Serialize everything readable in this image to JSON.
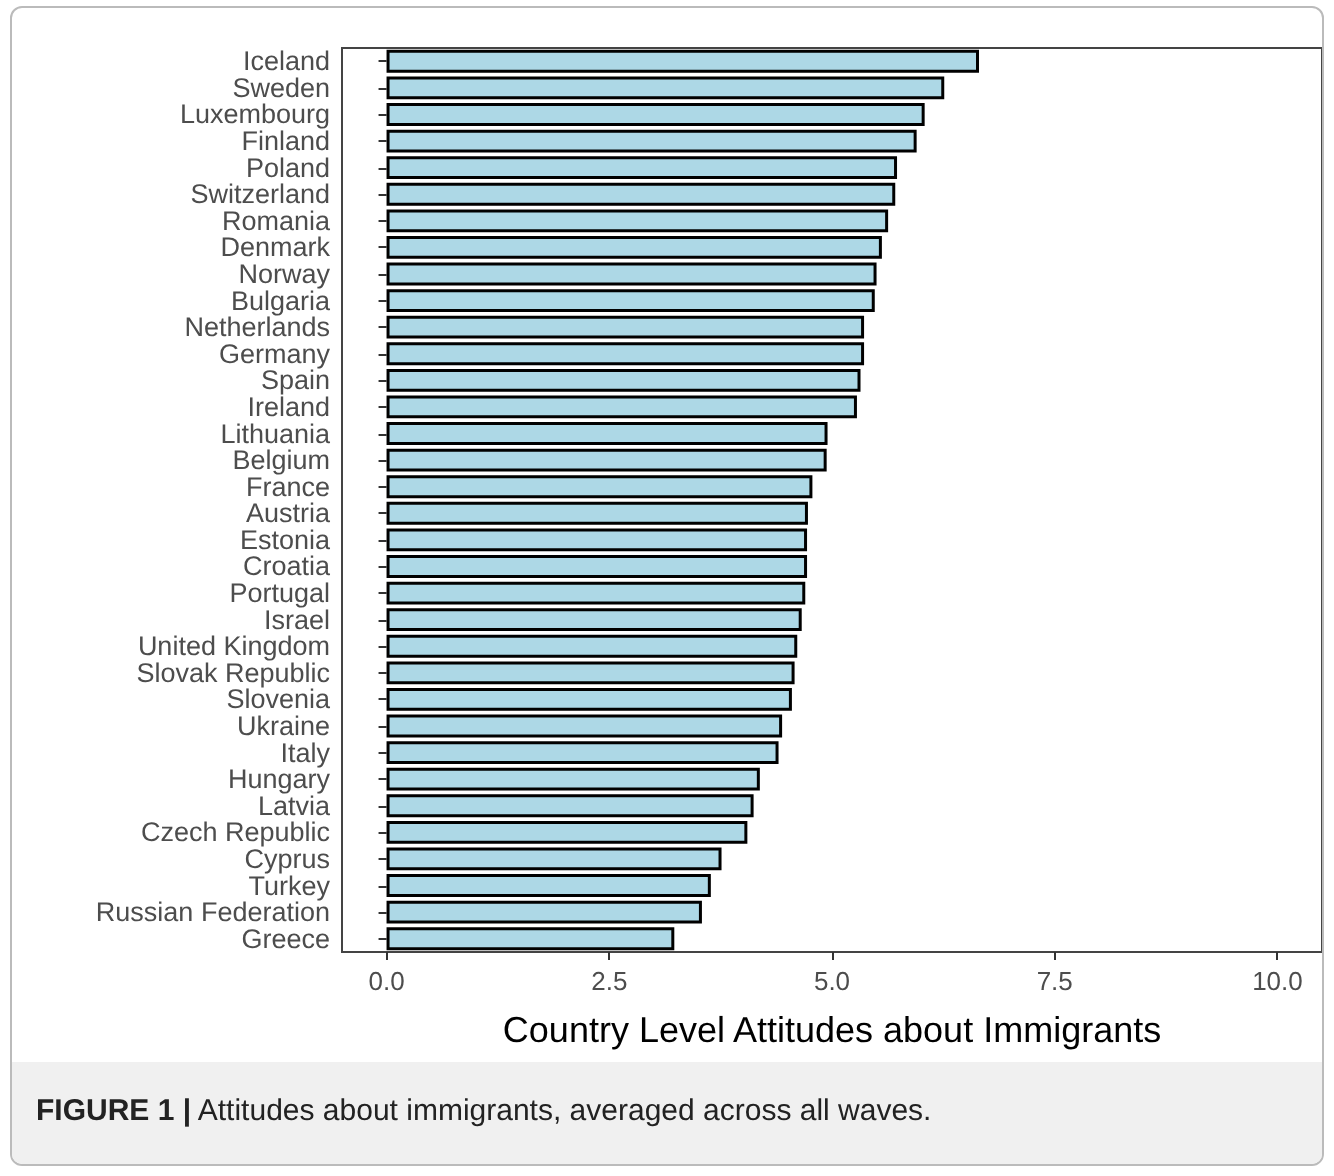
{
  "chart_data": {
    "type": "bar",
    "orientation": "horizontal",
    "xlabel": "Country Level Attitudes about Immigrants",
    "categories": [
      "Iceland",
      "Sweden",
      "Luxembourg",
      "Finland",
      "Poland",
      "Switzerland",
      "Romania",
      "Denmark",
      "Norway",
      "Bulgaria",
      "Netherlands",
      "Germany",
      "Spain",
      "Ireland",
      "Lithuania",
      "Belgium",
      "France",
      "Austria",
      "Estonia",
      "Croatia",
      "Portugal",
      "Israel",
      "United Kingdom",
      "Slovak Republic",
      "Slovenia",
      "Ukraine",
      "Italy",
      "Hungary",
      "Latvia",
      "Czech Republic",
      "Cyprus",
      "Turkey",
      "Russian Federation",
      "Greece"
    ],
    "values": [
      6.65,
      6.26,
      6.04,
      5.95,
      5.73,
      5.71,
      5.63,
      5.56,
      5.5,
      5.48,
      5.36,
      5.36,
      5.32,
      5.28,
      4.95,
      4.94,
      4.78,
      4.73,
      4.72,
      4.72,
      4.7,
      4.66,
      4.61,
      4.58,
      4.55,
      4.44,
      4.4,
      4.19,
      4.12,
      4.05,
      3.76,
      3.64,
      3.54,
      3.23
    ],
    "color": "#add8e6",
    "xlim": [
      -0.5,
      10.5
    ],
    "xticks": [
      {
        "value": 0,
        "label": "0.0"
      },
      {
        "value": 2.5,
        "label": "2.5"
      },
      {
        "value": 5,
        "label": "5.0"
      },
      {
        "value": 7.5,
        "label": "7.5"
      },
      {
        "value": 10,
        "label": "10.0"
      }
    ],
    "grid": false,
    "annotations": [
      "FIGURE 1 | Attitudes about immigrants, averaged across all waves."
    ]
  }
}
